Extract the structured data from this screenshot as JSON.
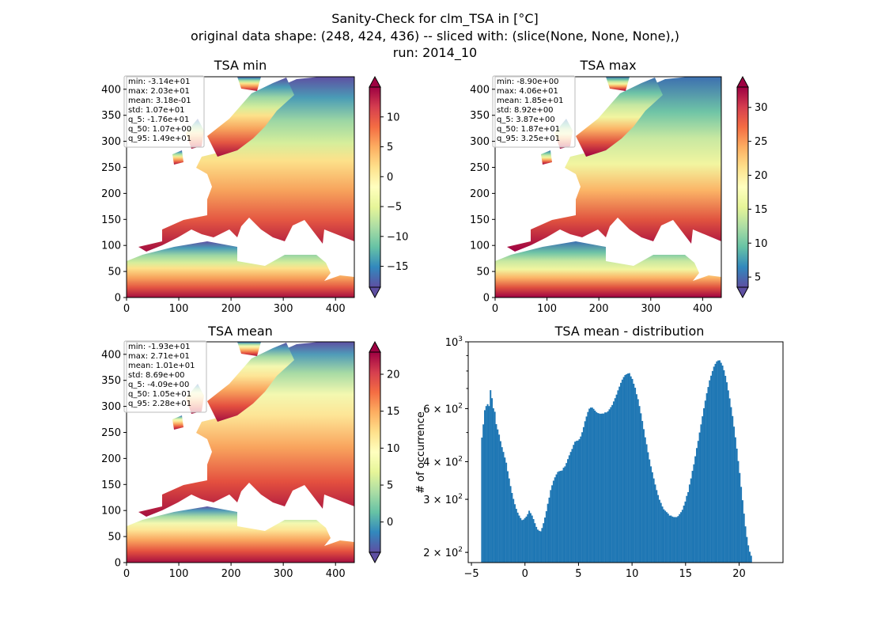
{
  "figure": {
    "title_line1": "Sanity-Check for clm_TSA in [°C]",
    "title_line2": "original data shape: (248, 424, 436) -- sliced with: (slice(None, None, None),)",
    "title_line3": "run: 2014_10"
  },
  "chart_data": [
    {
      "type": "heatmap",
      "title": "TSA min",
      "colormap": "Spectral_r",
      "xlim": [
        0,
        436
      ],
      "ylim": [
        0,
        424
      ],
      "x_ticks": [
        0,
        100,
        200,
        300,
        400
      ],
      "y_ticks": [
        0,
        50,
        100,
        150,
        200,
        250,
        300,
        350,
        400
      ],
      "colorbar": {
        "vmin": -18.5,
        "vmax": 15,
        "ticks": [
          -15,
          -10,
          -5,
          0,
          5,
          10
        ],
        "tick_labels": [
          "−15",
          "−10",
          "−5",
          "0",
          "5",
          "10"
        ],
        "extend": "both"
      },
      "stats": [
        "min: -3.14e+01",
        "max: 2.03e+01",
        "mean: 3.18e-01",
        "std: 1.07e+01",
        "q_5: -1.76e+01",
        "q_50: 1.07e+00",
        "q_95: 1.49e+01"
      ]
    },
    {
      "type": "heatmap",
      "title": "TSA max",
      "colormap": "Spectral_r",
      "xlim": [
        0,
        436
      ],
      "ylim": [
        0,
        424
      ],
      "x_ticks": [
        0,
        100,
        200,
        300,
        400
      ],
      "y_ticks": [
        0,
        50,
        100,
        150,
        200,
        250,
        300,
        350,
        400
      ],
      "colorbar": {
        "vmin": 3.5,
        "vmax": 33,
        "ticks": [
          5,
          10,
          15,
          20,
          25,
          30
        ],
        "tick_labels": [
          "5",
          "10",
          "15",
          "20",
          "25",
          "30"
        ],
        "extend": "both"
      },
      "stats": [
        "min: -8.90e+00",
        "max: 4.06e+01",
        "mean: 1.85e+01",
        "std: 8.92e+00",
        "q_5: 3.87e+00",
        "q_50: 1.87e+01",
        "q_95: 3.25e+01"
      ]
    },
    {
      "type": "heatmap",
      "title": "TSA mean",
      "colormap": "Spectral_r",
      "xlim": [
        0,
        436
      ],
      "ylim": [
        0,
        424
      ],
      "x_ticks": [
        0,
        100,
        200,
        300,
        400
      ],
      "y_ticks": [
        0,
        50,
        100,
        150,
        200,
        250,
        300,
        350,
        400
      ],
      "colorbar": {
        "vmin": -4.1,
        "vmax": 23,
        "ticks": [
          0,
          5,
          10,
          15,
          20
        ],
        "tick_labels": [
          "0",
          "5",
          "10",
          "15",
          "20"
        ],
        "extend": "both"
      },
      "stats": [
        "min: -1.93e+01",
        "max: 2.71e+01",
        "mean: 1.01e+01",
        "std: 8.69e+00",
        "q_5: -4.09e+00",
        "q_50: 1.05e+01",
        "q_95: 2.28e+01"
      ]
    },
    {
      "type": "bar",
      "title": "TSA mean - distribution",
      "xlabel": "",
      "ylabel": "# of occurrence",
      "xlim": [
        -5.3,
        24.1
      ],
      "ylim": [
        185,
        1000
      ],
      "y_scale": "log",
      "x_ticks": [
        -5,
        0,
        5,
        10,
        15,
        20
      ],
      "x_tick_labels": [
        "−5",
        "0",
        "5",
        "10",
        "15",
        "20"
      ],
      "y_ticks": [
        200,
        300,
        400,
        600,
        1000
      ],
      "y_tick_labels": [
        [
          "2",
          "10",
          "2"
        ],
        [
          "3",
          "10",
          "2"
        ],
        [
          "4",
          "10",
          "2"
        ],
        [
          "6",
          "10",
          "2"
        ],
        [
          "10",
          "3",
          ""
        ]
      ],
      "color": "#1f77b4",
      "bin_start": -4.09,
      "bin_width": 0.13376,
      "counts": [
        481,
        532,
        593,
        612,
        621,
        612,
        691,
        650,
        602,
        586,
        533,
        512,
        492,
        468,
        447,
        431,
        413,
        397,
        372,
        352,
        332,
        315,
        301,
        289,
        279,
        271,
        265,
        260,
        256,
        257,
        260,
        263,
        268,
        275,
        270,
        265,
        258,
        250,
        243,
        238,
        236,
        235,
        241,
        250,
        261,
        274,
        290,
        304,
        322,
        334,
        346,
        355,
        363,
        370,
        372,
        373,
        374,
        382,
        386,
        396,
        408,
        420,
        431,
        441,
        455,
        466,
        469,
        470,
        475,
        485,
        501,
        521,
        545,
        565,
        585,
        600,
        605,
        605,
        599,
        591,
        584,
        580,
        578,
        577,
        578,
        578,
        583,
        583,
        588,
        597,
        607,
        617,
        634,
        650,
        668,
        690,
        710,
        731,
        749,
        764,
        776,
        781,
        785,
        787,
        768,
        753,
        726,
        704,
        670,
        645,
        612,
        579,
        546,
        513,
        482,
        457,
        430,
        407,
        386,
        369,
        352,
        336,
        322,
        310,
        299,
        292,
        284,
        278,
        275,
        272,
        269,
        265,
        265,
        263,
        262,
        262,
        262,
        264,
        268,
        272,
        277,
        286,
        295,
        308,
        317,
        336,
        352,
        373,
        392,
        417,
        444,
        469,
        500,
        532,
        566,
        602,
        638,
        675,
        708,
        745,
        772,
        800,
        827,
        845,
        861,
        867,
        868,
        852,
        834,
        805,
        771,
        734,
        690,
        649,
        607,
        567,
        523,
        482,
        442,
        402,
        367,
        330,
        298,
        269,
        244,
        225,
        211,
        201,
        195
      ]
    }
  ]
}
